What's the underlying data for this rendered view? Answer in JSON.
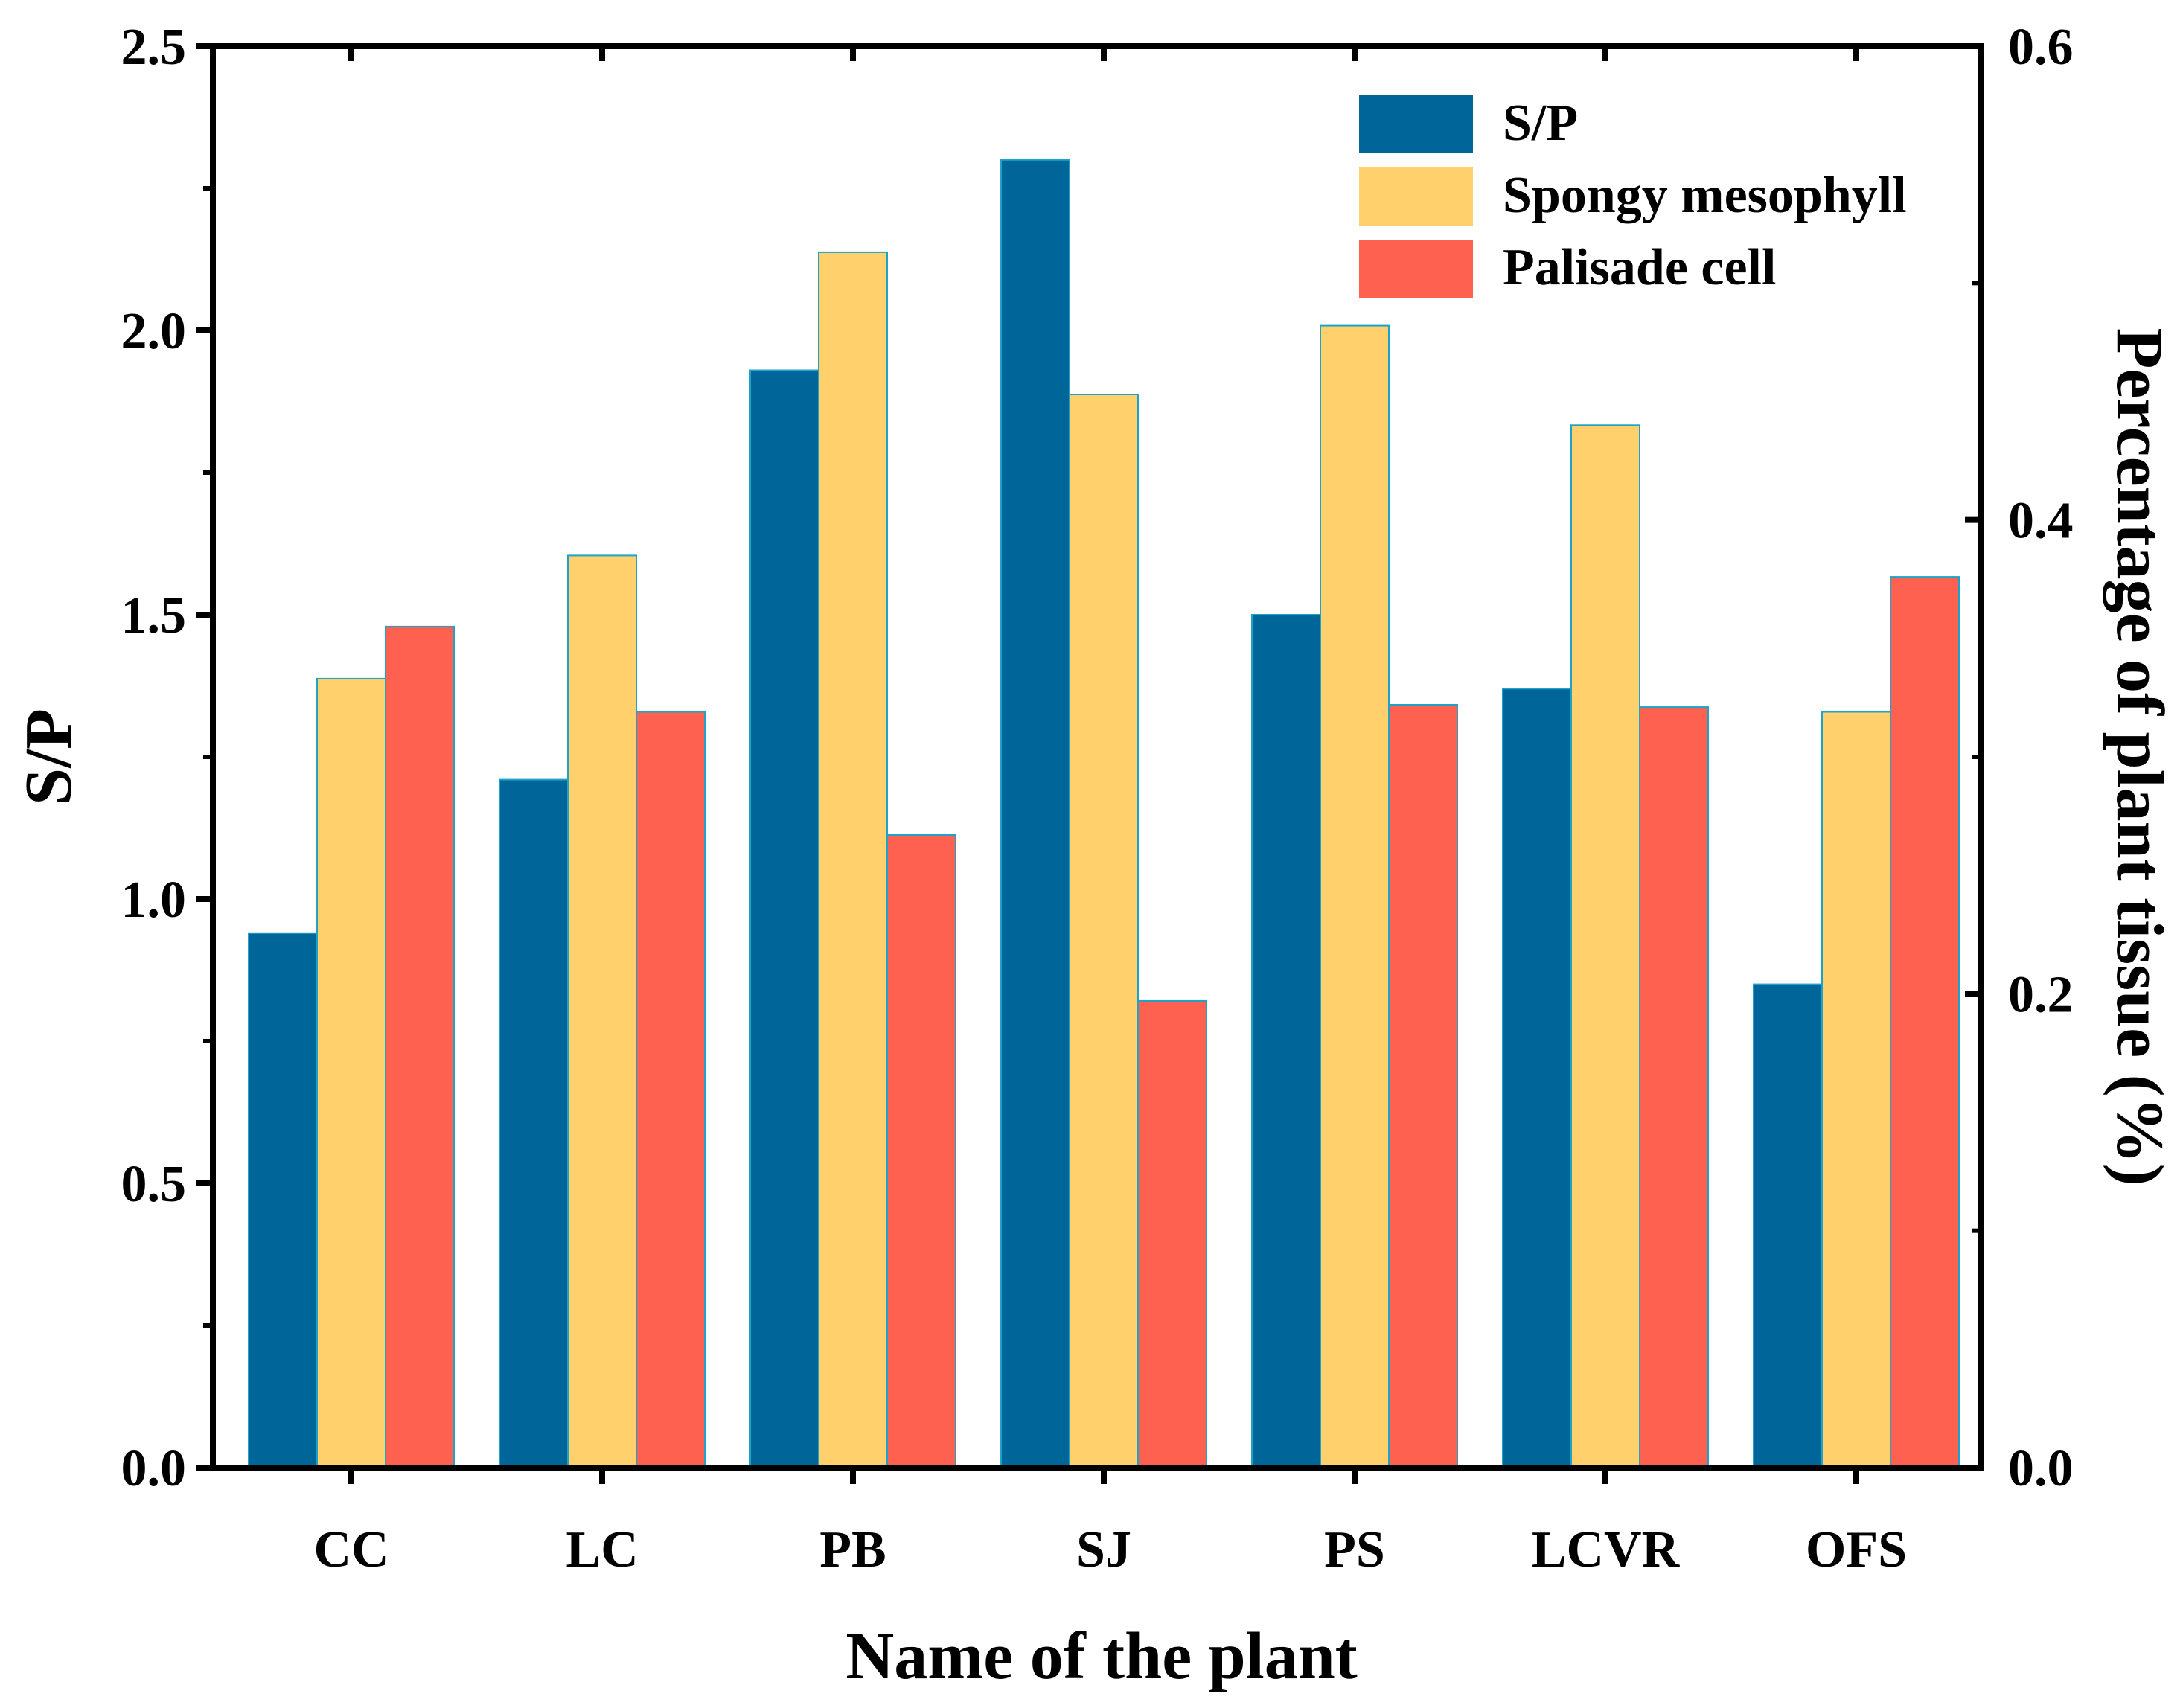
{
  "colors": {
    "sp": "#006699",
    "spongy": "#FFD06B",
    "palisade": "#FF6150",
    "bar_outline": "#1FA2C7",
    "axis": "#000000"
  },
  "chart_data": {
    "type": "bar",
    "xlabel": "Name of the plant",
    "ylabel_left": "S/P",
    "ylabel_right": "Percentage of plant tissue (%)",
    "categories": [
      "CC",
      "LC",
      "PB",
      "SJ",
      "PS",
      "LCVR",
      "OFS"
    ],
    "left_axis": {
      "ylim": [
        0,
        2.5
      ],
      "ticks": [
        "0.0",
        "0.5",
        "1.0",
        "1.5",
        "2.0",
        "2.5"
      ],
      "tick_values": [
        0,
        0.5,
        1.0,
        1.5,
        2.0,
        2.5
      ]
    },
    "right_axis": {
      "ylim": [
        0,
        0.6
      ],
      "ticks": [
        "0.0",
        "0.2",
        "0.4",
        "0.6"
      ],
      "tick_values": [
        0,
        0.2,
        0.4,
        0.6
      ]
    },
    "series": [
      {
        "name": "S/P",
        "axis": "left",
        "color_key": "sp",
        "values": [
          0.94,
          1.21,
          1.93,
          2.3,
          1.5,
          1.37,
          0.85
        ]
      },
      {
        "name": "Spongy mesophyll",
        "axis": "right",
        "color_key": "spongy",
        "values": [
          0.333,
          0.385,
          0.513,
          0.453,
          0.482,
          0.44,
          0.319
        ]
      },
      {
        "name": "Palisade cell",
        "axis": "right",
        "color_key": "palisade",
        "values": [
          0.355,
          0.319,
          0.267,
          0.197,
          0.322,
          0.321,
          0.376
        ]
      }
    ],
    "legend": {
      "position": "top-right",
      "entries": [
        "S/P",
        "Spongy mesophyll",
        "Palisade cell"
      ]
    },
    "grid": false
  }
}
